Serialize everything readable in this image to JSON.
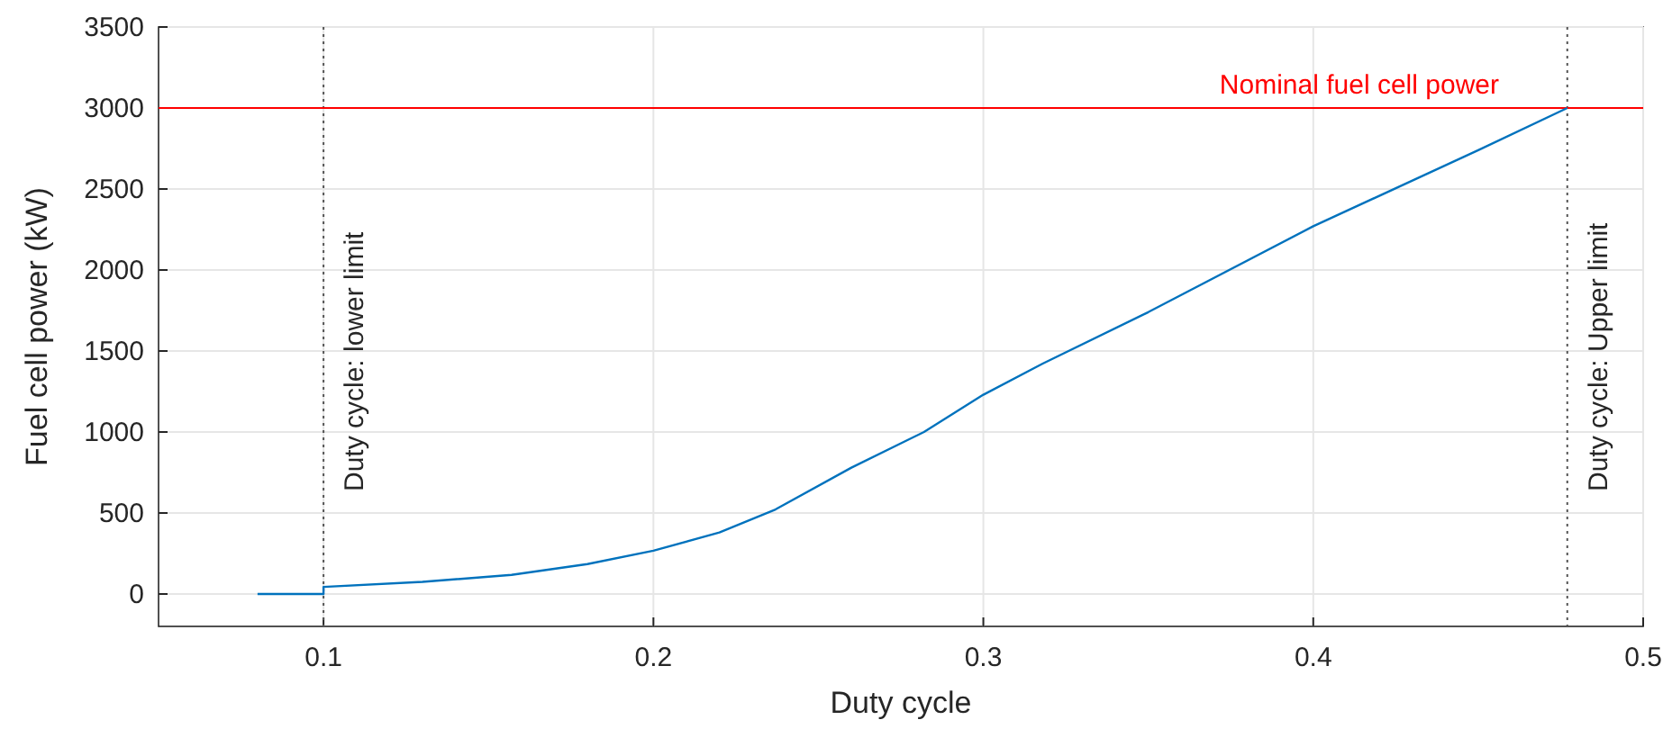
{
  "chart_data": {
    "type": "line",
    "xlabel": "Duty cycle",
    "ylabel": "Fuel cell power (kW)",
    "xlim": [
      0.05,
      0.5
    ],
    "xticks": [
      0.1,
      0.2,
      0.3,
      0.4,
      0.5
    ],
    "ylim": [
      -200,
      3500
    ],
    "yticks": [
      0,
      500,
      1000,
      1500,
      2000,
      2500,
      3000,
      3500
    ],
    "grid": true,
    "series": [
      {
        "color": "#0072bd",
        "x": [
          0.08,
          0.1,
          0.1,
          0.13,
          0.157,
          0.18,
          0.2,
          0.22,
          0.237,
          0.26,
          0.282,
          0.3,
          0.318,
          0.35,
          0.4,
          0.45,
          0.477
        ],
        "values": [
          0,
          0,
          44,
          75,
          118,
          185,
          267,
          380,
          522,
          780,
          1000,
          1230,
          1422,
          1740,
          2270,
          2740,
          3000
        ]
      }
    ],
    "ref_lines": [
      {
        "axis": "x",
        "value": 0.1,
        "label": "Duty cycle: lower limit",
        "color": "#555555",
        "line_style": "dotted"
      },
      {
        "axis": "x",
        "value": 0.477,
        "label": "Duty cycle: Upper limit",
        "color": "#555555",
        "line_style": "dotted"
      },
      {
        "axis": "y",
        "value": 3000,
        "label": "Nominal fuel cell power",
        "color": "#ff0000",
        "line_style": "solid"
      }
    ]
  }
}
